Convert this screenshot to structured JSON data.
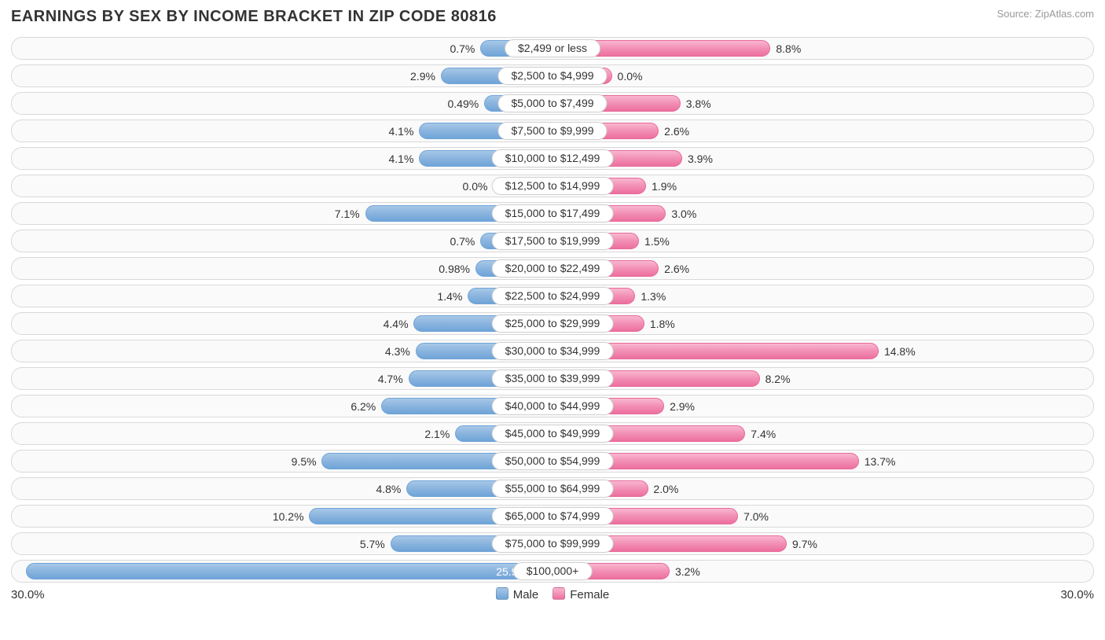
{
  "title": "EARNINGS BY SEX BY INCOME BRACKET IN ZIP CODE 80816",
  "source": "Source: ZipAtlas.com",
  "axis_max_label": "30.0%",
  "legend": {
    "male": "Male",
    "female": "Female"
  },
  "chart": {
    "type": "diverging-bar",
    "axis_max": 30.0,
    "male_color": "#8ab4de",
    "male_border": "#6fa4d8",
    "female_color": "#f28fb4",
    "female_border": "#ec6f9e",
    "track_border": "#d9d9d9",
    "track_bg": "#fafafa",
    "pill_bg": "#ffffff",
    "pill_border": "#d0d0d0",
    "label_fontsize": 14,
    "title_fontsize": 20,
    "rows": [
      {
        "label": "$2,499 or less",
        "male": 0.7,
        "male_txt": "0.7%",
        "female": 8.8,
        "female_txt": "8.8%"
      },
      {
        "label": "$2,500 to $4,999",
        "male": 2.9,
        "male_txt": "2.9%",
        "female": 0.0,
        "female_txt": "0.0%"
      },
      {
        "label": "$5,000 to $7,499",
        "male": 0.49,
        "male_txt": "0.49%",
        "female": 3.8,
        "female_txt": "3.8%"
      },
      {
        "label": "$7,500 to $9,999",
        "male": 4.1,
        "male_txt": "4.1%",
        "female": 2.6,
        "female_txt": "2.6%"
      },
      {
        "label": "$10,000 to $12,499",
        "male": 4.1,
        "male_txt": "4.1%",
        "female": 3.9,
        "female_txt": "3.9%"
      },
      {
        "label": "$12,500 to $14,999",
        "male": 0.0,
        "male_txt": "0.0%",
        "female": 1.9,
        "female_txt": "1.9%"
      },
      {
        "label": "$15,000 to $17,499",
        "male": 7.1,
        "male_txt": "7.1%",
        "female": 3.0,
        "female_txt": "3.0%"
      },
      {
        "label": "$17,500 to $19,999",
        "male": 0.7,
        "male_txt": "0.7%",
        "female": 1.5,
        "female_txt": "1.5%"
      },
      {
        "label": "$20,000 to $22,499",
        "male": 0.98,
        "male_txt": "0.98%",
        "female": 2.6,
        "female_txt": "2.6%"
      },
      {
        "label": "$22,500 to $24,999",
        "male": 1.4,
        "male_txt": "1.4%",
        "female": 1.3,
        "female_txt": "1.3%"
      },
      {
        "label": "$25,000 to $29,999",
        "male": 4.4,
        "male_txt": "4.4%",
        "female": 1.8,
        "female_txt": "1.8%"
      },
      {
        "label": "$30,000 to $34,999",
        "male": 4.3,
        "male_txt": "4.3%",
        "female": 14.8,
        "female_txt": "14.8%"
      },
      {
        "label": "$35,000 to $39,999",
        "male": 4.7,
        "male_txt": "4.7%",
        "female": 8.2,
        "female_txt": "8.2%"
      },
      {
        "label": "$40,000 to $44,999",
        "male": 6.2,
        "male_txt": "6.2%",
        "female": 2.9,
        "female_txt": "2.9%"
      },
      {
        "label": "$45,000 to $49,999",
        "male": 2.1,
        "male_txt": "2.1%",
        "female": 7.4,
        "female_txt": "7.4%"
      },
      {
        "label": "$50,000 to $54,999",
        "male": 9.5,
        "male_txt": "9.5%",
        "female": 13.7,
        "female_txt": "13.7%"
      },
      {
        "label": "$55,000 to $64,999",
        "male": 4.8,
        "male_txt": "4.8%",
        "female": 2.0,
        "female_txt": "2.0%"
      },
      {
        "label": "$65,000 to $74,999",
        "male": 10.2,
        "male_txt": "10.2%",
        "female": 7.0,
        "female_txt": "7.0%"
      },
      {
        "label": "$75,000 to $99,999",
        "male": 5.7,
        "male_txt": "5.7%",
        "female": 9.7,
        "female_txt": "9.7%"
      },
      {
        "label": "$100,000+",
        "male": 25.9,
        "male_txt": "25.9%",
        "female": 3.2,
        "female_txt": "3.2%",
        "male_inside": true
      }
    ]
  }
}
